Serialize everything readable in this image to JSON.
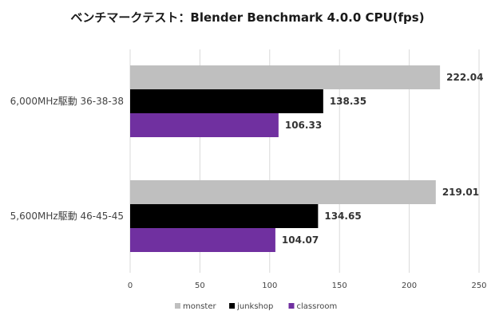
{
  "chart_data": {
    "type": "bar",
    "orientation": "horizontal",
    "title": "ベンチマークテスト：Blender Benchmark 4.0.0 CPU(fps)",
    "categories": [
      "6,000MHz駆動 36-38-38",
      "5,600MHz駆動 46-45-45"
    ],
    "series": [
      {
        "name": "monster",
        "color": "#bfbfbf",
        "values": [
          222.04,
          219.01
        ]
      },
      {
        "name": "junkshop",
        "color": "#000000",
        "values": [
          138.35,
          134.65
        ]
      },
      {
        "name": "classroom",
        "color": "#7030a0",
        "values": [
          106.33,
          104.07
        ]
      }
    ],
    "xlim": [
      0,
      250
    ],
    "xticks": [
      0,
      50,
      100,
      150,
      200,
      250
    ],
    "grid": "vertical",
    "legend": "bottom"
  }
}
